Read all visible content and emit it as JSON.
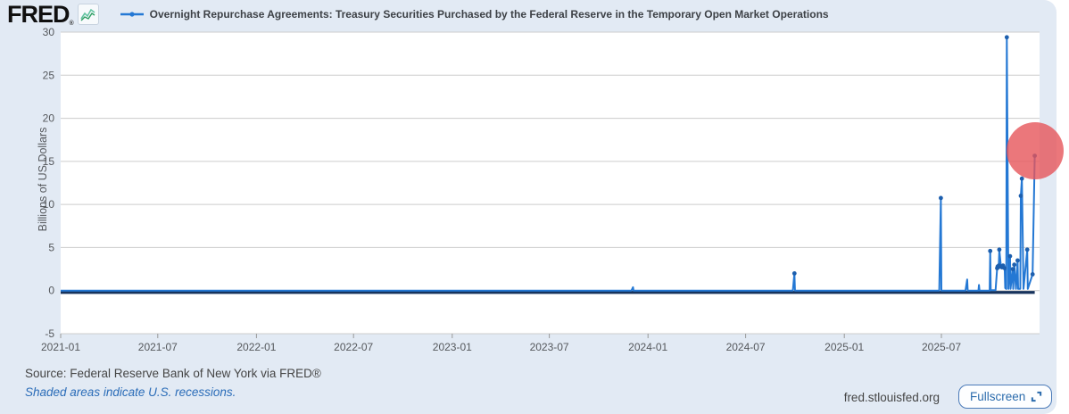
{
  "header": {
    "logo_text": "FRED",
    "logo_registered": "®",
    "logo_chart_icon": "line-chart-icon",
    "legend_marker": "blue-line-with-marker",
    "series_title": "Overnight Repurchase Agreements: Treasury Securities Purchased by the Federal Reserve in the Temporary Open Market Operations"
  },
  "y_axis": {
    "title": "Billions of US Dollars"
  },
  "footer": {
    "source": "Source: Federal Reserve Bank of New York via FRED®",
    "recessions_note": "Shaded areas indicate U.S. recessions.",
    "site": "fred.stlouisfed.org",
    "fullscreen_label": "Fullscreen",
    "fullscreen_icon": "expand-corners-icon"
  },
  "colors": {
    "widget_background": "#e2eaf4",
    "plot_background": "#ffffff",
    "grid": "#cccccc",
    "tick": "#999999",
    "line": "#2478d4",
    "marker": "#1d5fae",
    "baseline": "#17335c",
    "annotation_circle": "rgba(230,85,90,0.8)",
    "logo_icon_green": "#2e9e63",
    "link_blue": "#2a6cb8",
    "button_blue": "#2c6cad"
  },
  "chart_data": {
    "type": "line",
    "title": "Overnight Repurchase Agreements: Treasury Securities Purchased by the Federal Reserve in the Temporary Open Market Operations",
    "ylabel": "Billions of US Dollars",
    "ylim": [
      -5,
      30
    ],
    "y_ticks": [
      30,
      25,
      20,
      15,
      10,
      5,
      0,
      -5
    ],
    "x_ticks": [
      "2021-01",
      "2021-07",
      "2022-01",
      "2022-07",
      "2023-01",
      "2023-07",
      "2024-01",
      "2024-07",
      "2025-01",
      "2025-07"
    ],
    "x_domain": [
      "2021-01-01",
      "2025-12-31"
    ],
    "grid": "horizontal-only",
    "legend_position": "top",
    "points": [
      [
        "2021-01-01",
        0
      ],
      [
        "2021-07-01",
        0
      ],
      [
        "2022-01-01",
        0
      ],
      [
        "2022-07-01",
        0
      ],
      [
        "2023-01-01",
        0
      ],
      [
        "2023-07-01",
        0
      ],
      [
        "2023-12-01",
        0
      ],
      [
        "2023-12-04",
        0.4
      ],
      [
        "2023-12-05",
        0
      ],
      [
        "2024-06-01",
        0
      ],
      [
        "2024-09-27",
        0
      ],
      [
        "2024-09-30",
        2.0
      ],
      [
        "2024-10-01",
        0
      ],
      [
        "2025-03-01",
        0
      ],
      [
        "2025-06-27",
        0
      ],
      [
        "2025-06-30",
        10.75
      ],
      [
        "2025-07-01",
        0
      ],
      [
        "2025-08-15",
        0
      ],
      [
        "2025-08-18",
        1.3
      ],
      [
        "2025-08-19",
        0
      ],
      [
        "2025-09-08",
        0
      ],
      [
        "2025-09-09",
        0.65
      ],
      [
        "2025-09-10",
        0
      ],
      [
        "2025-09-29",
        0
      ],
      [
        "2025-09-30",
        4.6
      ],
      [
        "2025-10-01",
        0.05
      ],
      [
        "2025-10-10",
        0.05
      ],
      [
        "2025-10-13",
        2.6
      ],
      [
        "2025-10-14",
        2.8
      ],
      [
        "2025-10-15",
        2.7
      ],
      [
        "2025-10-16",
        2.9
      ],
      [
        "2025-10-17",
        4.75
      ],
      [
        "2025-10-20",
        2.8
      ],
      [
        "2025-10-22",
        2.7
      ],
      [
        "2025-10-24",
        2.9
      ],
      [
        "2025-10-27",
        2.6
      ],
      [
        "2025-10-28",
        0.3
      ],
      [
        "2025-10-30",
        0.2
      ],
      [
        "2025-10-31",
        29.4
      ],
      [
        "2025-11-03",
        0.2
      ],
      [
        "2025-11-06",
        4.0
      ],
      [
        "2025-11-07",
        0.2
      ],
      [
        "2025-11-11",
        2.5
      ],
      [
        "2025-11-12",
        0.2
      ],
      [
        "2025-11-14",
        3.0
      ],
      [
        "2025-11-17",
        0.2
      ],
      [
        "2025-11-20",
        3.5
      ],
      [
        "2025-11-21",
        0.2
      ],
      [
        "2025-11-25",
        0.2
      ],
      [
        "2025-11-26",
        11.0
      ],
      [
        "2025-11-28",
        13.0
      ],
      [
        "2025-12-01",
        0.2
      ],
      [
        "2025-12-08",
        4.75
      ],
      [
        "2025-12-09",
        0.2
      ],
      [
        "2025-12-18",
        1.9
      ],
      [
        "2025-12-22",
        15.65
      ]
    ],
    "annotation": {
      "date": "2025-12-22",
      "value": 15.65,
      "radius": 32
    }
  }
}
